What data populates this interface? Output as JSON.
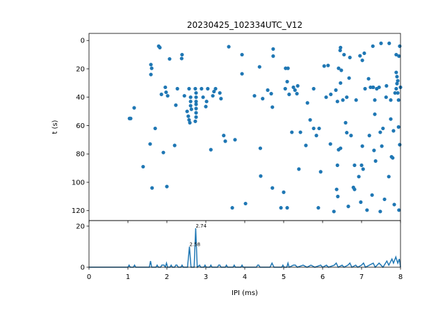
{
  "chart_data": [
    {
      "type": "scatter",
      "title": "20230425_102334UTC_V12",
      "y_label": "t (s)",
      "color": "#1f77b4",
      "x": [
        1.04,
        1.07,
        1.16,
        1.39,
        1.59,
        1.61,
        1.59,
        1.57,
        1.62,
        1.7,
        1.79,
        1.82,
        1.86,
        1.91,
        1.96,
        1.98,
        2.0,
        2.02,
        2.07,
        2.2,
        2.27,
        2.38,
        2.39,
        2.23,
        2.45,
        2.52,
        2.55,
        2.57,
        2.59,
        2.57,
        2.61,
        2.61,
        2.61,
        2.63,
        2.73,
        2.75,
        2.75,
        2.75,
        2.75,
        2.75,
        2.75,
        2.75,
        2.73,
        2.89,
        2.93,
        3.0,
        3.02,
        3.05,
        3.18,
        3.21,
        3.13,
        3.25,
        3.36,
        3.39,
        3.46,
        3.5,
        3.75,
        3.59,
        3.68,
        3.93,
        3.93,
        4.02,
        4.25,
        4.38,
        4.4,
        4.41,
        4.46,
        4.59,
        4.68,
        4.73,
        4.73,
        4.71,
        4.71,
        4.93,
        5.0,
        5.04,
        5.05,
        5.09,
        5.11,
        5.09,
        5.14,
        5.21,
        5.25,
        5.29,
        5.34,
        5.36,
        5.39,
        5.43,
        5.57,
        5.61,
        5.68,
        5.77,
        5.77,
        5.84,
        5.91,
        5.89,
        5.95,
        6.04,
        6.09,
        6.14,
        6.2,
        6.21,
        6.34,
        6.29,
        6.36,
        6.38,
        6.38,
        6.41,
        6.39,
        6.41,
        6.46,
        6.46,
        6.46,
        6.52,
        6.45,
        6.48,
        6.55,
        6.59,
        6.62,
        6.62,
        6.68,
        6.7,
        6.66,
        6.73,
        6.79,
        6.82,
        6.82,
        6.86,
        6.93,
        6.98,
        7.02,
        7.0,
        7.02,
        7.04,
        7.07,
        7.09,
        7.14,
        7.18,
        7.2,
        7.23,
        7.29,
        7.27,
        7.32,
        7.34,
        7.34,
        7.3,
        7.36,
        7.39,
        7.45,
        7.48,
        7.5,
        7.52,
        7.48,
        7.55,
        7.59,
        7.63,
        7.64,
        7.7,
        7.71,
        7.75,
        7.75,
        7.77,
        7.8,
        7.82,
        7.84,
        7.86,
        7.89,
        7.89,
        7.91,
        7.93,
        7.91,
        7.93,
        7.95,
        7.95,
        7.96,
        7.98,
        7.98,
        7.96,
        8.0,
        7.89,
        7.29,
        6.96
      ],
      "y": [
        55,
        55,
        47.5,
        89,
        17,
        19.6,
        24,
        73,
        104,
        62,
        4,
        5,
        38,
        79,
        33,
        36.5,
        103,
        39,
        13,
        74,
        34,
        12.7,
        10,
        45.6,
        39,
        50,
        53.4,
        56,
        58,
        34,
        40,
        43,
        46,
        48.5,
        34,
        37,
        40,
        43,
        45,
        48,
        51,
        54,
        57,
        34,
        40,
        46.6,
        43,
        34,
        39,
        36,
        77,
        34,
        37,
        41,
        67,
        71,
        70,
        4.4,
        118,
        10,
        23.5,
        115,
        39,
        18.6,
        76,
        95.6,
        41,
        35,
        37.5,
        6,
        11,
        47,
        104,
        118,
        107,
        34,
        19.6,
        29,
        19.6,
        118,
        38,
        64.7,
        33,
        35,
        37.5,
        32,
        90.7,
        64.7,
        74,
        44,
        56,
        34,
        62,
        67,
        62,
        118,
        92.6,
        18,
        40,
        17.6,
        73,
        38,
        35,
        120.6,
        105,
        43,
        88,
        77,
        110,
        19.6,
        76,
        5,
        30,
        42,
        7,
        21,
        10,
        58,
        40,
        65,
        26.5,
        12,
        117,
        67,
        103.6,
        88,
        105,
        42,
        96,
        114,
        14,
        88,
        74.5,
        90.7,
        9,
        34,
        119.6,
        27,
        67,
        33,
        33,
        109,
        77.5,
        42,
        52,
        33,
        85,
        34,
        33,
        64.7,
        2,
        74.5,
        120.6,
        62,
        112,
        40,
        32,
        96,
        2,
        42,
        55.4,
        82,
        82.8,
        63.7,
        115.7,
        37,
        34,
        22.5,
        25.5,
        28.4,
        30.4,
        37,
        42,
        61,
        119.6,
        4,
        73.5,
        11,
        33,
        10,
        4,
        10.8
      ],
      "xlim": [
        0,
        8
      ],
      "xticks": [
        0,
        1,
        2,
        3,
        4,
        5,
        6,
        7,
        8
      ],
      "ylim": [
        127,
        -5
      ],
      "yticks": [
        0,
        20,
        40,
        60,
        80,
        100,
        120
      ]
    },
    {
      "type": "line",
      "x_label": "IPI (ms)",
      "color": "#1f77b4",
      "x": [
        0,
        1.0,
        1.03,
        1.06,
        1.14,
        1.17,
        1.2,
        1.55,
        1.58,
        1.61,
        1.72,
        1.75,
        1.78,
        1.84,
        1.87,
        1.9,
        1.93,
        1.96,
        1.99,
        2.02,
        2.08,
        2.11,
        2.14,
        2.2,
        2.23,
        2.26,
        2.29,
        2.36,
        2.39,
        2.42,
        2.53,
        2.58,
        2.62,
        2.7,
        2.74,
        2.78,
        2.84,
        2.87,
        2.95,
        2.98,
        3.01,
        3.1,
        3.13,
        3.16,
        3.3,
        3.33,
        3.36,
        3.39,
        3.5,
        3.53,
        3.56,
        3.7,
        3.73,
        3.76,
        3.9,
        3.93,
        3.96,
        4.3,
        4.33,
        4.36,
        4.39,
        4.65,
        4.7,
        4.75,
        4.95,
        4.98,
        5.01,
        5.08,
        5.11,
        5.14,
        5.25,
        5.3,
        5.35,
        5.5,
        5.6,
        5.7,
        5.8,
        5.95,
        6.0,
        6.1,
        6.15,
        6.3,
        6.35,
        6.4,
        6.5,
        6.55,
        6.65,
        6.7,
        6.75,
        6.85,
        6.9,
        7.0,
        7.05,
        7.1,
        7.2,
        7.3,
        7.35,
        7.45,
        7.5,
        7.55,
        7.65,
        7.7,
        7.78,
        7.82,
        7.88,
        7.93,
        7.97,
        8.0
      ],
      "values": [
        0,
        0,
        1,
        0,
        0,
        1,
        0,
        0,
        3,
        0,
        0,
        1,
        0,
        0,
        1,
        1,
        1,
        0,
        2,
        0,
        0,
        1,
        0,
        0,
        1,
        1,
        0,
        0,
        1,
        0,
        0,
        10,
        0,
        0,
        19,
        0,
        1,
        0,
        0,
        1,
        0,
        0,
        1,
        0,
        0,
        1,
        1,
        0,
        0,
        1,
        0,
        0,
        1,
        0,
        0,
        1,
        0,
        0,
        1,
        1,
        0,
        0,
        2,
        0,
        0,
        1,
        0,
        0,
        2,
        0,
        1,
        1,
        0,
        1,
        0,
        1,
        0,
        1,
        0,
        1,
        0,
        1,
        2,
        0,
        1,
        0,
        1,
        2,
        0,
        1,
        0,
        1,
        2,
        0,
        1,
        2,
        0,
        2,
        1,
        0,
        3,
        1,
        4,
        2,
        5,
        2,
        4,
        0
      ],
      "annotations": [
        {
          "text": "2.58",
          "x": 2.58,
          "y": 10
        },
        {
          "text": "2.74",
          "x": 2.74,
          "y": 19
        }
      ],
      "xlim": [
        0,
        8
      ],
      "xticks": [
        0,
        1,
        2,
        3,
        4,
        5,
        6,
        7,
        8
      ],
      "ylim": [
        0,
        22.7
      ],
      "yticks": [
        0,
        20
      ]
    }
  ]
}
